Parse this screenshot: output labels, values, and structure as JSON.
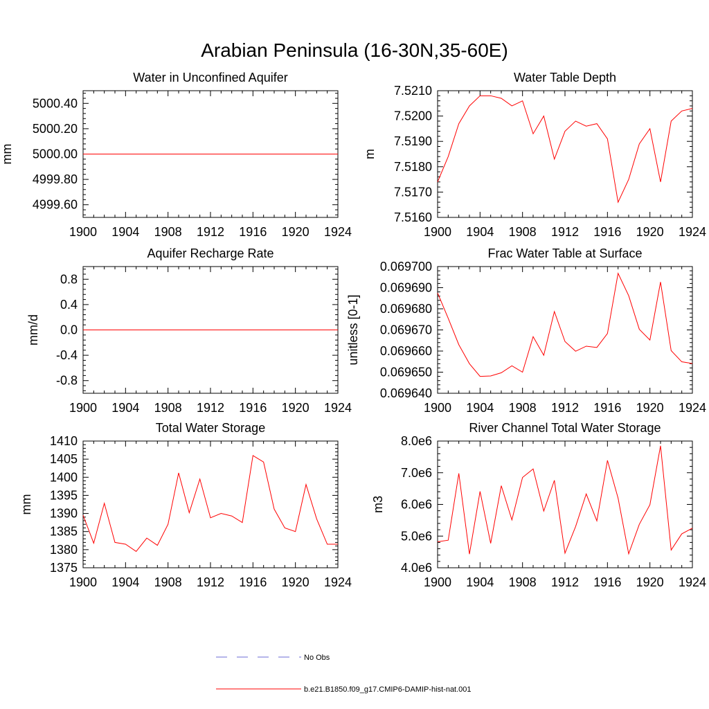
{
  "figure": {
    "title": "Arabian Peninsula (16-30N,35-60E)",
    "line_color": "#ff0000",
    "obs_color": "#6b6bd6"
  },
  "legend": {
    "entries": [
      {
        "label": "No Obs",
        "style": "dashed",
        "color": "#6b6bd6"
      },
      {
        "label": "b.e21.B1850.f09_g17.CMIP6-DAMIP-hist-nat.001",
        "style": "solid",
        "color": "#ff0000"
      }
    ]
  },
  "chart_data": [
    {
      "type": "line",
      "title": "Water in Unconfined Aquifer",
      "ylabel": "mm",
      "xlim": [
        1900,
        1924
      ],
      "xticks": [
        "1900",
        "1904",
        "1908",
        "1912",
        "1916",
        "1920",
        "1924"
      ],
      "ylim": [
        4999.5,
        5000.5
      ],
      "yticks": [
        "4999.60",
        "4999.80",
        "5000.00",
        "5000.20",
        "5000.40"
      ],
      "x": [
        1900,
        1901,
        1902,
        1903,
        1904,
        1905,
        1906,
        1907,
        1908,
        1909,
        1910,
        1911,
        1912,
        1913,
        1914,
        1915,
        1916,
        1917,
        1918,
        1919,
        1920,
        1921,
        1922,
        1923,
        1924
      ],
      "series": [
        {
          "values": [
            5000,
            5000,
            5000,
            5000,
            5000,
            5000,
            5000,
            5000,
            5000,
            5000,
            5000,
            5000,
            5000,
            5000,
            5000,
            5000,
            5000,
            5000,
            5000,
            5000,
            5000,
            5000,
            5000,
            5000,
            5000
          ]
        }
      ]
    },
    {
      "type": "line",
      "title": "Water Table Depth",
      "ylabel": "m",
      "xlim": [
        1900,
        1924
      ],
      "xticks": [
        "1900",
        "1904",
        "1908",
        "1912",
        "1916",
        "1920",
        "1924"
      ],
      "ylim": [
        7.516,
        7.521
      ],
      "yticks": [
        "7.5160",
        "7.5170",
        "7.5180",
        "7.5190",
        "7.5200",
        "7.5210"
      ],
      "x": [
        1900,
        1901,
        1902,
        1903,
        1904,
        1905,
        1906,
        1907,
        1908,
        1909,
        1910,
        1911,
        1912,
        1913,
        1914,
        1915,
        1916,
        1917,
        1918,
        1919,
        1920,
        1921,
        1922,
        1923,
        1924
      ],
      "series": [
        {
          "values": [
            7.5174,
            7.5184,
            7.5197,
            7.5204,
            7.5208,
            7.5208,
            7.5207,
            7.5204,
            7.5206,
            7.5193,
            7.52,
            7.5183,
            7.5194,
            7.5198,
            7.5196,
            7.5197,
            7.5191,
            7.5166,
            7.5175,
            7.5189,
            7.5195,
            7.5174,
            7.5198,
            7.5202,
            7.5203
          ]
        }
      ]
    },
    {
      "type": "line",
      "title": "Aquifer Recharge Rate",
      "ylabel": "mm/d",
      "xlim": [
        1900,
        1924
      ],
      "xticks": [
        "1900",
        "1904",
        "1908",
        "1912",
        "1916",
        "1920",
        "1924"
      ],
      "ylim": [
        -1.0,
        1.0
      ],
      "yticks": [
        "-0.8",
        "-0.4",
        "0.0",
        "0.4",
        "0.8"
      ],
      "x": [
        1900,
        1901,
        1902,
        1903,
        1904,
        1905,
        1906,
        1907,
        1908,
        1909,
        1910,
        1911,
        1912,
        1913,
        1914,
        1915,
        1916,
        1917,
        1918,
        1919,
        1920,
        1921,
        1922,
        1923,
        1924
      ],
      "series": [
        {
          "values": [
            0,
            0,
            0,
            0,
            0,
            0,
            0,
            0,
            0,
            0,
            0,
            0,
            0,
            0,
            0,
            0,
            0,
            0,
            0,
            0,
            0,
            0,
            0,
            0,
            0
          ]
        }
      ]
    },
    {
      "type": "line",
      "title": "Frac Water Table at Surface",
      "ylabel": "unitless [0-1]",
      "xlim": [
        1900,
        1924
      ],
      "xticks": [
        "1900",
        "1904",
        "1908",
        "1912",
        "1916",
        "1920",
        "1924"
      ],
      "ylim": [
        0.06964,
        0.0697
      ],
      "yticks": [
        "0.069640",
        "0.069650",
        "0.069660",
        "0.069670",
        "0.069680",
        "0.069690",
        "0.069700"
      ],
      "x": [
        1900,
        1901,
        1902,
        1903,
        1904,
        1905,
        1906,
        1907,
        1908,
        1909,
        1910,
        1911,
        1912,
        1913,
        1914,
        1915,
        1916,
        1917,
        1918,
        1919,
        1920,
        1921,
        1922,
        1923,
        1924
      ],
      "series": [
        {
          "values": [
            0.0696875,
            0.0696755,
            0.069663,
            0.069654,
            0.069648,
            0.0696482,
            0.0696497,
            0.069653,
            0.06965,
            0.0696668,
            0.069658,
            0.0696787,
            0.0696645,
            0.0696599,
            0.0696623,
            0.0696617,
            0.0696683,
            0.0696968,
            0.0696862,
            0.0696703,
            0.0696652,
            0.0696927,
            0.0696602,
            0.0696549,
            0.0696541
          ]
        }
      ]
    },
    {
      "type": "line",
      "title": "Total Water Storage",
      "ylabel": "mm",
      "xlim": [
        1900,
        1924
      ],
      "xticks": [
        "1900",
        "1904",
        "1908",
        "1912",
        "1916",
        "1920",
        "1924"
      ],
      "ylim": [
        1375,
        1410
      ],
      "yticks": [
        "1375",
        "1380",
        "1385",
        "1390",
        "1395",
        "1400",
        "1405",
        "1410"
      ],
      "x": [
        1900,
        1901,
        1902,
        1903,
        1904,
        1905,
        1906,
        1907,
        1908,
        1909,
        1910,
        1911,
        1912,
        1913,
        1914,
        1915,
        1916,
        1917,
        1918,
        1919,
        1920,
        1921,
        1922,
        1923,
        1924
      ],
      "series": [
        {
          "values": [
            1389.5,
            1381.8,
            1392.8,
            1382.0,
            1381.5,
            1379.5,
            1383.2,
            1381.2,
            1387.0,
            1401.2,
            1390.2,
            1399.5,
            1388.8,
            1390.0,
            1389.3,
            1387.5,
            1406.0,
            1404.2,
            1391.2,
            1386.0,
            1385.0,
            1398.0,
            1388.5,
            1381.5,
            1381.5
          ]
        }
      ]
    },
    {
      "type": "line",
      "title": "River Channel Total Water Storage",
      "ylabel": "m3",
      "xlim": [
        1900,
        1924
      ],
      "xticks": [
        "1900",
        "1904",
        "1908",
        "1912",
        "1916",
        "1920",
        "1924"
      ],
      "ylim": [
        4000000,
        8000000
      ],
      "yticks": [
        "4.0e6",
        "5.0e6",
        "6.0e6",
        "7.0e6",
        "8.0e6"
      ],
      "x": [
        1900,
        1901,
        1902,
        1903,
        1904,
        1905,
        1906,
        1907,
        1908,
        1909,
        1910,
        1911,
        1912,
        1913,
        1914,
        1915,
        1916,
        1917,
        1918,
        1919,
        1920,
        1921,
        1922,
        1923,
        1924
      ],
      "series": [
        {
          "values": [
            4820000,
            4870000,
            6980000,
            4430000,
            6410000,
            4770000,
            6590000,
            5510000,
            6850000,
            7120000,
            5790000,
            6760000,
            4460000,
            5300000,
            6330000,
            5480000,
            7390000,
            6200000,
            4440000,
            5370000,
            5990000,
            7850000,
            4560000,
            5070000,
            5250000
          ]
        }
      ]
    }
  ]
}
